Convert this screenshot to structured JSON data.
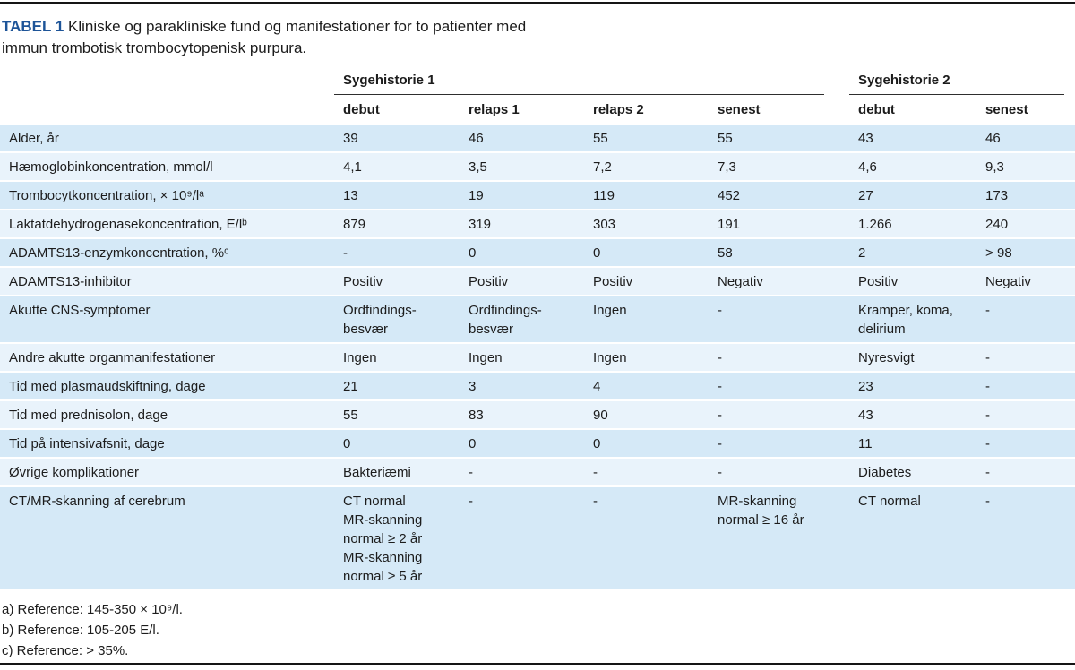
{
  "colors": {
    "accent": "#1d5498",
    "row-dark": "#d5e9f7",
    "row-light": "#e9f3fb",
    "rule": "#151515"
  },
  "title": {
    "label": "TABEL 1",
    "text": "Kliniske og parakliniske fund og manifestationer for to patienter med\nimmun trombotisk trombocytopenisk purpura."
  },
  "table": {
    "group_headers": [
      {
        "label": "Sygehistorie 1"
      },
      {
        "label": "Sygehistorie 2"
      }
    ],
    "column_headers": [
      "debut",
      "relaps 1",
      "relaps 2",
      "senest",
      "debut",
      "senest"
    ],
    "rows": [
      {
        "label": "Alder, år",
        "values": [
          "39",
          "46",
          "55",
          "55",
          "43",
          "46"
        ]
      },
      {
        "label": "Hæmoglobinkoncentration, mmol/l",
        "values": [
          "4,1",
          "3,5",
          "7,2",
          "7,3",
          "4,6",
          "9,3"
        ]
      },
      {
        "label": "Trombocytkoncentration, × 10⁹/lᵃ",
        "values": [
          "13",
          "19",
          "119",
          "452",
          "27",
          "173"
        ]
      },
      {
        "label": "Laktatdehydrogenasekoncentration, E/lᵇ",
        "values": [
          "879",
          "319",
          "303",
          "191",
          "1.266",
          "240"
        ]
      },
      {
        "label": "ADAMTS13-enzymkoncentration, %ᶜ",
        "values": [
          "-",
          "0",
          "0",
          "58",
          "2",
          "> 98"
        ]
      },
      {
        "label": "ADAMTS13-inhibitor",
        "values": [
          "Positiv",
          "Positiv",
          "Positiv",
          "Negativ",
          "Positiv",
          "Negativ"
        ]
      },
      {
        "label": "Akutte CNS-symptomer",
        "values": [
          "Ordfindings-\nbesvær",
          "Ordfindings-\nbesvær",
          "Ingen",
          "-",
          "Kramper, koma,\ndelirium",
          "-"
        ]
      },
      {
        "label": "Andre akutte organmanifestationer",
        "values": [
          "Ingen",
          "Ingen",
          "Ingen",
          "-",
          "Nyresvigt",
          "-"
        ]
      },
      {
        "label": "Tid med plasmaudskiftning, dage",
        "values": [
          "21",
          "3",
          "4",
          "-",
          "23",
          "-"
        ]
      },
      {
        "label": "Tid med prednisolon, dage",
        "values": [
          "55",
          "83",
          "90",
          "-",
          "43",
          "-"
        ]
      },
      {
        "label": "Tid på intensivafsnit, dage",
        "values": [
          "0",
          "0",
          "0",
          "-",
          "11",
          "-"
        ]
      },
      {
        "label": "Øvrige komplikationer",
        "values": [
          "Bakteriæmi",
          "-",
          "-",
          "-",
          "Diabetes",
          "-"
        ]
      },
      {
        "label": "CT/MR-skanning af cerebrum",
        "values": [
          "CT normal\nMR-skanning\nnormal ≥ 2 år\nMR-skanning\nnormal ≥ 5 år",
          "-",
          "-",
          "MR-skanning\nnormal ≥ 16 år",
          "CT normal",
          "-"
        ]
      }
    ]
  },
  "footnotes": [
    "a) Reference: 145-350 × 10⁹/l.",
    "b) Reference: 105-205 E/l.",
    "c) Reference: > 35%."
  ]
}
